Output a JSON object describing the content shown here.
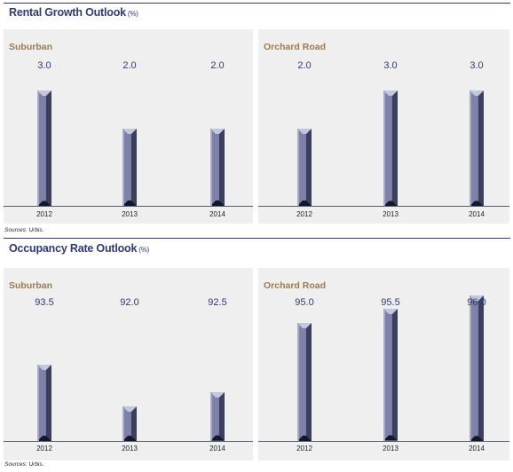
{
  "colors": {
    "title": "#2e3b73",
    "panel_title": "#9b7a50",
    "panel_bg": "#efefef",
    "bar_face": "#7f82a8",
    "bar_side": "#3c3f5c"
  },
  "sections": [
    {
      "title": "Rental Growth Outlook",
      "unit": "(%)",
      "source": "Sources: Urbis."
    },
    {
      "title": "Occupancy Rate Outlook",
      "unit": "(%)",
      "source": "Sources: Urbis."
    }
  ],
  "chart_data": [
    {
      "type": "bar",
      "title": "Suburban",
      "categories": [
        "2012",
        "2013",
        "2014"
      ],
      "values": [
        3.0,
        2.0,
        2.0
      ],
      "value_labels": [
        "3.0",
        "2.0",
        "2.0"
      ],
      "ylim": [
        0,
        4.1
      ]
    },
    {
      "type": "bar",
      "title": "Orchard Road",
      "categories": [
        "2012",
        "2013",
        "2014"
      ],
      "values": [
        2.0,
        3.0,
        3.0
      ],
      "value_labels": [
        "2.0",
        "3.0",
        "3.0"
      ],
      "ylim": [
        0,
        4.1
      ]
    },
    {
      "type": "bar",
      "title": "Suburban",
      "categories": [
        "2012",
        "2013",
        "2014"
      ],
      "values": [
        93.5,
        92.0,
        92.5
      ],
      "value_labels": [
        "93.5",
        "92.0",
        "92.5"
      ],
      "ylim": [
        90.75,
        97.25
      ]
    },
    {
      "type": "bar",
      "title": "Orchard Road",
      "categories": [
        "2012",
        "2013",
        "2014"
      ],
      "values": [
        95.0,
        95.5,
        96.0
      ],
      "value_labels": [
        "95.0",
        "95.5",
        "96.0"
      ],
      "ylim": [
        90.75,
        97.25
      ]
    }
  ]
}
